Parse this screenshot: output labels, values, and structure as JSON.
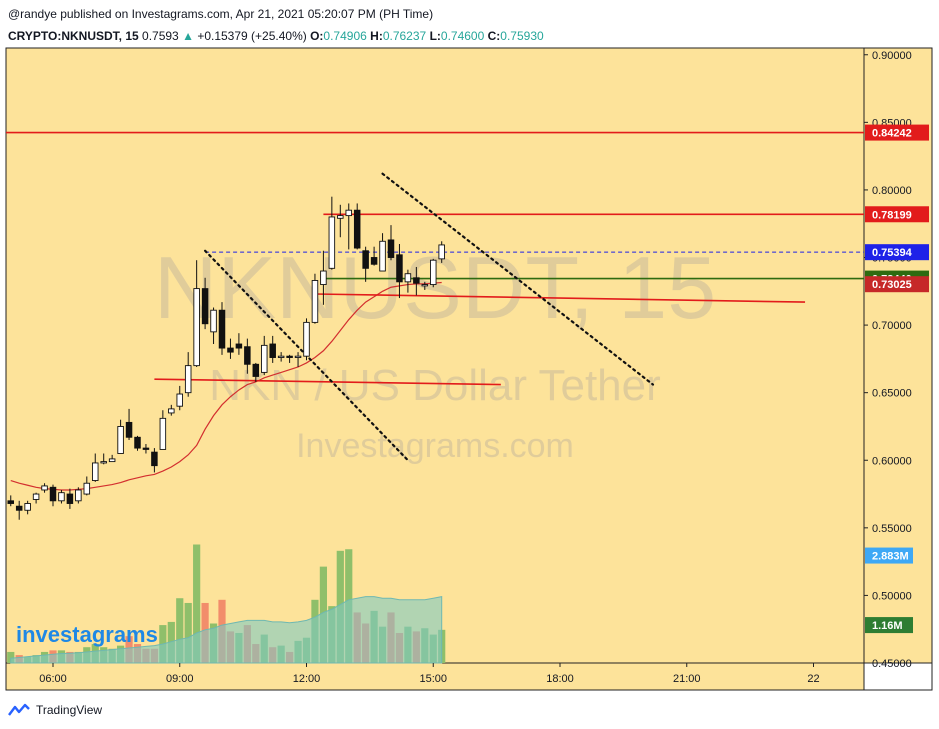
{
  "header": {
    "publish_line": "@randye published on Investagrams.com, Apr 21, 2021 05:20:07 PM (PH Time)",
    "symbol": "CRYPTO:NKNUSDT, 15",
    "last": "0.7593",
    "change": "+0.15379 (+25.40%)",
    "o_label": "O:",
    "o": "0.74906",
    "h_label": "H:",
    "h": "0.76237",
    "l_label": "L:",
    "l": "0.74600",
    "c_label": "C:",
    "c": "0.75930"
  },
  "watermark": {
    "symbol": "NKNUSDT, 15",
    "name": "NKN / US Dollar Tether",
    "site": "Investagrams.com",
    "logo": "investagrams"
  },
  "footer": {
    "brand": "TradingView"
  },
  "colors": {
    "background": "#fde39a",
    "up_volume": "#8fbf6a",
    "down_volume": "#f28d6b",
    "red_line": "#e21b1b",
    "green_line": "#2e6b10",
    "blue_badge": "#1e22e8",
    "volume_ma_fill": "#7fc9c3"
  },
  "chart_data": {
    "type": "candlestick",
    "interval_minutes": 15,
    "ylim": [
      0.45,
      0.905
    ],
    "y_ticks": [
      "0.90000",
      "0.85000",
      "0.80000",
      "0.75000",
      "0.70000",
      "0.65000",
      "0.60000",
      "0.55000",
      "0.50000",
      "0.45000"
    ],
    "y_tick_values": [
      0.9,
      0.85,
      0.8,
      0.75,
      0.7,
      0.65,
      0.6,
      0.55,
      0.5,
      0.45
    ],
    "x_ticks": [
      "06:00",
      "09:00",
      "12:00",
      "15:00",
      "18:00",
      "21:00",
      "22"
    ],
    "x_tick_bar_index": [
      5,
      20,
      35,
      50,
      65,
      80,
      95
    ],
    "candles": [
      {
        "o": 0.57,
        "h": 0.574,
        "l": 0.566,
        "c": 0.568
      },
      {
        "o": 0.566,
        "h": 0.57,
        "l": 0.556,
        "c": 0.563
      },
      {
        "o": 0.563,
        "h": 0.57,
        "l": 0.56,
        "c": 0.568
      },
      {
        "o": 0.571,
        "h": 0.576,
        "l": 0.568,
        "c": 0.575
      },
      {
        "o": 0.578,
        "h": 0.583,
        "l": 0.576,
        "c": 0.581
      },
      {
        "o": 0.58,
        "h": 0.582,
        "l": 0.566,
        "c": 0.57
      },
      {
        "o": 0.57,
        "h": 0.578,
        "l": 0.568,
        "c": 0.576
      },
      {
        "o": 0.575,
        "h": 0.579,
        "l": 0.564,
        "c": 0.568
      },
      {
        "o": 0.57,
        "h": 0.58,
        "l": 0.568,
        "c": 0.578
      },
      {
        "o": 0.575,
        "h": 0.588,
        "l": 0.574,
        "c": 0.583
      },
      {
        "o": 0.585,
        "h": 0.605,
        "l": 0.584,
        "c": 0.598
      },
      {
        "o": 0.598,
        "h": 0.605,
        "l": 0.597,
        "c": 0.599
      },
      {
        "o": 0.599,
        "h": 0.604,
        "l": 0.599,
        "c": 0.601
      },
      {
        "o": 0.605,
        "h": 0.63,
        "l": 0.605,
        "c": 0.625
      },
      {
        "o": 0.628,
        "h": 0.638,
        "l": 0.615,
        "c": 0.617
      },
      {
        "o": 0.617,
        "h": 0.618,
        "l": 0.607,
        "c": 0.609
      },
      {
        "o": 0.609,
        "h": 0.612,
        "l": 0.605,
        "c": 0.608
      },
      {
        "o": 0.606,
        "h": 0.609,
        "l": 0.591,
        "c": 0.596
      },
      {
        "o": 0.608,
        "h": 0.637,
        "l": 0.608,
        "c": 0.631
      },
      {
        "o": 0.635,
        "h": 0.641,
        "l": 0.633,
        "c": 0.638
      },
      {
        "o": 0.64,
        "h": 0.655,
        "l": 0.637,
        "c": 0.649
      },
      {
        "o": 0.65,
        "h": 0.68,
        "l": 0.647,
        "c": 0.67
      },
      {
        "o": 0.67,
        "h": 0.748,
        "l": 0.669,
        "c": 0.727
      },
      {
        "o": 0.727,
        "h": 0.735,
        "l": 0.697,
        "c": 0.701
      },
      {
        "o": 0.695,
        "h": 0.713,
        "l": 0.686,
        "c": 0.711
      },
      {
        "o": 0.711,
        "h": 0.717,
        "l": 0.678,
        "c": 0.683
      },
      {
        "o": 0.683,
        "h": 0.69,
        "l": 0.675,
        "c": 0.68
      },
      {
        "o": 0.686,
        "h": 0.694,
        "l": 0.678,
        "c": 0.683
      },
      {
        "o": 0.684,
        "h": 0.69,
        "l": 0.664,
        "c": 0.671
      },
      {
        "o": 0.671,
        "h": 0.672,
        "l": 0.658,
        "c": 0.662
      },
      {
        "o": 0.665,
        "h": 0.692,
        "l": 0.663,
        "c": 0.685
      },
      {
        "o": 0.686,
        "h": 0.692,
        "l": 0.672,
        "c": 0.676
      },
      {
        "o": 0.676,
        "h": 0.68,
        "l": 0.673,
        "c": 0.677
      },
      {
        "o": 0.677,
        "h": 0.678,
        "l": 0.672,
        "c": 0.676
      },
      {
        "o": 0.676,
        "h": 0.68,
        "l": 0.669,
        "c": 0.677
      },
      {
        "o": 0.677,
        "h": 0.705,
        "l": 0.674,
        "c": 0.702
      },
      {
        "o": 0.702,
        "h": 0.738,
        "l": 0.701,
        "c": 0.733
      },
      {
        "o": 0.73,
        "h": 0.755,
        "l": 0.715,
        "c": 0.74
      },
      {
        "o": 0.742,
        "h": 0.795,
        "l": 0.741,
        "c": 0.78
      },
      {
        "o": 0.779,
        "h": 0.789,
        "l": 0.765,
        "c": 0.781
      },
      {
        "o": 0.781,
        "h": 0.79,
        "l": 0.756,
        "c": 0.785
      },
      {
        "o": 0.785,
        "h": 0.79,
        "l": 0.756,
        "c": 0.757
      },
      {
        "o": 0.755,
        "h": 0.758,
        "l": 0.732,
        "c": 0.742
      },
      {
        "o": 0.75,
        "h": 0.758,
        "l": 0.744,
        "c": 0.745
      },
      {
        "o": 0.74,
        "h": 0.768,
        "l": 0.74,
        "c": 0.762
      },
      {
        "o": 0.763,
        "h": 0.774,
        "l": 0.748,
        "c": 0.75
      },
      {
        "o": 0.752,
        "h": 0.76,
        "l": 0.72,
        "c": 0.732
      },
      {
        "o": 0.732,
        "h": 0.741,
        "l": 0.724,
        "c": 0.738
      },
      {
        "o": 0.735,
        "h": 0.743,
        "l": 0.722,
        "c": 0.731
      },
      {
        "o": 0.729,
        "h": 0.732,
        "l": 0.726,
        "c": 0.73
      },
      {
        "o": 0.73,
        "h": 0.749,
        "l": 0.728,
        "c": 0.748
      },
      {
        "o": 0.749,
        "h": 0.762,
        "l": 0.746,
        "c": 0.7593
      }
    ],
    "candles_start_bar_index": 0,
    "volume_max": 1.0,
    "volume": [
      0.07,
      0.05,
      0.04,
      0.05,
      0.07,
      0.08,
      0.08,
      0.07,
      0.07,
      0.1,
      0.12,
      0.1,
      0.09,
      0.11,
      0.17,
      0.12,
      0.09,
      0.09,
      0.24,
      0.26,
      0.41,
      0.38,
      0.75,
      0.38,
      0.25,
      0.4,
      0.2,
      0.19,
      0.24,
      0.12,
      0.18,
      0.1,
      0.11,
      0.07,
      0.14,
      0.16,
      0.4,
      0.61,
      0.36,
      0.71,
      0.72,
      0.32,
      0.25,
      0.33,
      0.23,
      0.32,
      0.19,
      0.23,
      0.2,
      0.22,
      0.18,
      0.21
    ],
    "volume_up": [
      true,
      false,
      true,
      true,
      true,
      false,
      true,
      false,
      true,
      true,
      true,
      true,
      true,
      true,
      false,
      false,
      false,
      false,
      true,
      true,
      true,
      true,
      true,
      false,
      true,
      false,
      false,
      true,
      false,
      false,
      true,
      false,
      true,
      false,
      true,
      true,
      true,
      true,
      true,
      true,
      true,
      false,
      false,
      true,
      true,
      false,
      false,
      true,
      false,
      true,
      true,
      true
    ],
    "volume_ma": [
      0.03,
      0.035,
      0.04,
      0.045,
      0.05,
      0.055,
      0.06,
      0.062,
      0.065,
      0.07,
      0.075,
      0.08,
      0.085,
      0.09,
      0.095,
      0.1,
      0.105,
      0.11,
      0.12,
      0.135,
      0.15,
      0.16,
      0.19,
      0.21,
      0.22,
      0.24,
      0.25,
      0.26,
      0.27,
      0.27,
      0.27,
      0.26,
      0.26,
      0.255,
      0.26,
      0.27,
      0.29,
      0.32,
      0.34,
      0.37,
      0.4,
      0.41,
      0.42,
      0.42,
      0.41,
      0.41,
      0.4,
      0.4,
      0.4,
      0.4,
      0.41,
      0.42
    ],
    "price_ma": [
      0.585,
      0.583,
      0.5815,
      0.58,
      0.579,
      0.5785,
      0.578,
      0.578,
      0.5785,
      0.579,
      0.58,
      0.581,
      0.582,
      0.5835,
      0.5855,
      0.587,
      0.5885,
      0.5895,
      0.592,
      0.595,
      0.599,
      0.604,
      0.611,
      0.623,
      0.633,
      0.641,
      0.647,
      0.652,
      0.656,
      0.658,
      0.661,
      0.663,
      0.665,
      0.667,
      0.669,
      0.672,
      0.676,
      0.681,
      0.688,
      0.696,
      0.704,
      0.711,
      0.717,
      0.721,
      0.725,
      0.728,
      0.729,
      0.73,
      0.7305,
      0.7305,
      0.731,
      0.7315
    ],
    "horizontal_lines": [
      {
        "value": 0.84242,
        "color": "#e21b1b",
        "label": "0.84242",
        "full": true
      },
      {
        "value": 0.78199,
        "color": "#e21b1b",
        "label": "0.78199",
        "from_bar": 37
      },
      {
        "value": 0.7344,
        "color": "#2e6b10",
        "label": "0.73440",
        "from_bar": 37
      }
    ],
    "current_price": {
      "value": 0.75394,
      "label": "0.75394",
      "color": "#1e22e8"
    },
    "trend_lines": [
      {
        "x1": 17,
        "y1": 0.66,
        "x2": 58,
        "y2": 0.656,
        "color": "#e21b1b",
        "dashed": false
      },
      {
        "x1": 36,
        "y1": 0.723,
        "x2": 94,
        "y2": 0.717,
        "color": "#e21b1b",
        "dashed": false,
        "label": "0.73025",
        "label_value": 0.73025
      },
      {
        "x1": 23,
        "y1": 0.755,
        "x2": 47,
        "y2": 0.6,
        "color": "#111111",
        "dashed": true
      },
      {
        "x1": 44,
        "y1": 0.812,
        "x2": 76,
        "y2": 0.656,
        "color": "#111111",
        "dashed": true
      }
    ],
    "dashed_price_line": {
      "value": 0.754,
      "from_bar": 23
    },
    "volume_labels": [
      {
        "label": "2.883M",
        "color": "#3ea8f5",
        "frac": 0.34
      },
      {
        "label": "1.16M",
        "color": "#2e7d32",
        "frac": 0.12
      }
    ]
  }
}
